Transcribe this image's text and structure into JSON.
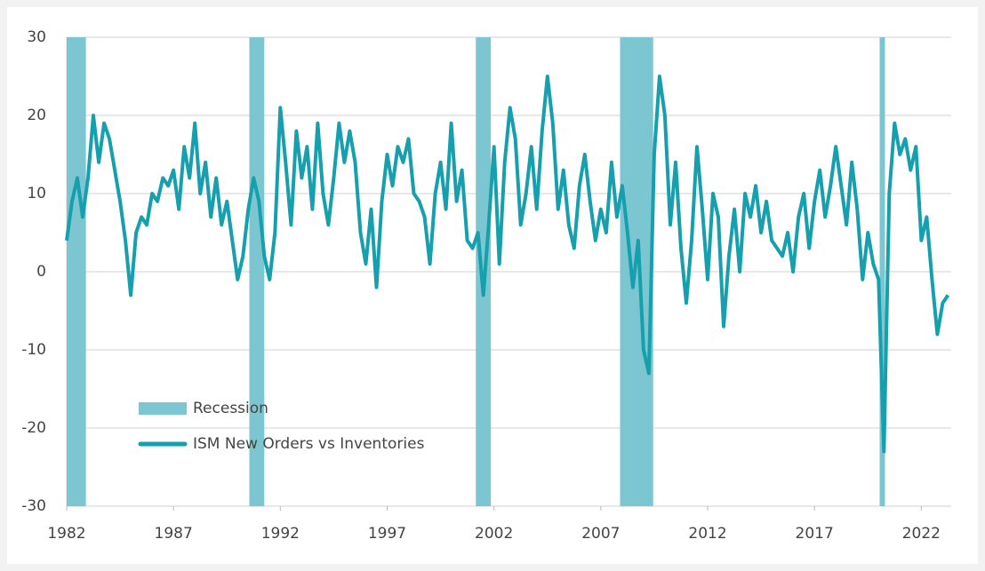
{
  "chart_data": {
    "type": "line",
    "recession_label": "Recession",
    "recession_color": "#7cc6d1",
    "recessions": [
      [
        1982.0,
        1982.9
      ],
      [
        1990.55,
        1991.25
      ],
      [
        2001.15,
        2001.85
      ],
      [
        2007.9,
        2009.45
      ],
      [
        2020.05,
        2020.3
      ]
    ],
    "x": [
      1982.0,
      1982.25,
      1982.5,
      1982.75,
      1983.0,
      1983.25,
      1983.5,
      1983.75,
      1984.0,
      1984.25,
      1984.5,
      1984.75,
      1985.0,
      1985.25,
      1985.5,
      1985.75,
      1986.0,
      1986.25,
      1986.5,
      1986.75,
      1987.0,
      1987.25,
      1987.5,
      1987.75,
      1988.0,
      1988.25,
      1988.5,
      1988.75,
      1989.0,
      1989.25,
      1989.5,
      1989.75,
      1990.0,
      1990.25,
      1990.5,
      1990.75,
      1991.0,
      1991.25,
      1991.5,
      1991.75,
      1992.0,
      1992.25,
      1992.5,
      1992.75,
      1993.0,
      1993.25,
      1993.5,
      1993.75,
      1994.0,
      1994.25,
      1994.5,
      1994.75,
      1995.0,
      1995.25,
      1995.5,
      1995.75,
      1996.0,
      1996.25,
      1996.5,
      1996.75,
      1997.0,
      1997.25,
      1997.5,
      1997.75,
      1998.0,
      1998.25,
      1998.5,
      1998.75,
      1999.0,
      1999.25,
      1999.5,
      1999.75,
      2000.0,
      2000.25,
      2000.5,
      2000.75,
      2001.0,
      2001.25,
      2001.5,
      2001.75,
      2002.0,
      2002.25,
      2002.5,
      2002.75,
      2003.0,
      2003.25,
      2003.5,
      2003.75,
      2004.0,
      2004.25,
      2004.5,
      2004.75,
      2005.0,
      2005.25,
      2005.5,
      2005.75,
      2006.0,
      2006.25,
      2006.5,
      2006.75,
      2007.0,
      2007.25,
      2007.5,
      2007.75,
      2008.0,
      2008.25,
      2008.5,
      2008.75,
      2009.0,
      2009.25,
      2009.5,
      2009.75,
      2010.0,
      2010.25,
      2010.5,
      2010.75,
      2011.0,
      2011.25,
      2011.5,
      2011.75,
      2012.0,
      2012.25,
      2012.5,
      2012.75,
      2013.0,
      2013.25,
      2013.5,
      2013.75,
      2014.0,
      2014.25,
      2014.5,
      2014.75,
      2015.0,
      2015.25,
      2015.5,
      2015.75,
      2016.0,
      2016.25,
      2016.5,
      2016.75,
      2017.0,
      2017.25,
      2017.5,
      2017.75,
      2018.0,
      2018.25,
      2018.5,
      2018.75,
      2019.0,
      2019.25,
      2019.5,
      2019.75,
      2020.0,
      2020.25,
      2020.5,
      2020.75,
      2021.0,
      2021.25,
      2021.5,
      2021.75,
      2022.0,
      2022.25,
      2022.5,
      2022.75,
      2023.0,
      2023.25
    ],
    "series": [
      {
        "name": "ISM New Orders vs Inventories",
        "color": "#16a0ae",
        "values": [
          4,
          9,
          12,
          7,
          12,
          20,
          14,
          19,
          17,
          13,
          9,
          4,
          -3,
          5,
          7,
          6,
          10,
          9,
          12,
          11,
          13,
          8,
          16,
          12,
          19,
          10,
          14,
          7,
          12,
          6,
          9,
          4,
          -1,
          2,
          8,
          12,
          9,
          2,
          -1,
          5,
          21,
          14,
          6,
          18,
          12,
          16,
          8,
          19,
          10,
          6,
          12,
          19,
          14,
          18,
          14,
          5,
          1,
          8,
          -2,
          9,
          15,
          11,
          16,
          14,
          17,
          10,
          9,
          7,
          1,
          10,
          14,
          8,
          19,
          9,
          13,
          4,
          3,
          5,
          -3,
          6,
          16,
          1,
          14,
          21,
          17,
          6,
          10,
          16,
          8,
          18,
          25,
          19,
          8,
          13,
          6,
          3,
          11,
          15,
          9,
          4,
          8,
          5,
          14,
          7,
          11,
          5,
          -2,
          4,
          -10,
          -13,
          15,
          25,
          20,
          6,
          14,
          3,
          -4,
          4,
          16,
          8,
          -1,
          10,
          7,
          -7,
          2,
          8,
          0,
          10,
          7,
          11,
          5,
          9,
          4,
          3,
          2,
          5,
          0,
          7,
          10,
          3,
          9,
          13,
          7,
          11,
          16,
          11,
          6,
          14,
          8,
          -1,
          5,
          1,
          -1,
          -23,
          10,
          19,
          15,
          17,
          13,
          16,
          4,
          7,
          -1,
          -8,
          -4,
          -3
        ]
      }
    ],
    "xlim": [
      1982.0,
      2023.4
    ],
    "xticks": [
      1982,
      1987,
      1992,
      1997,
      2002,
      2007,
      2012,
      2017,
      2022
    ],
    "ylim": [
      -30,
      30
    ],
    "yticks": [
      -30,
      -20,
      -10,
      0,
      10,
      20,
      30
    ],
    "grid": true
  }
}
